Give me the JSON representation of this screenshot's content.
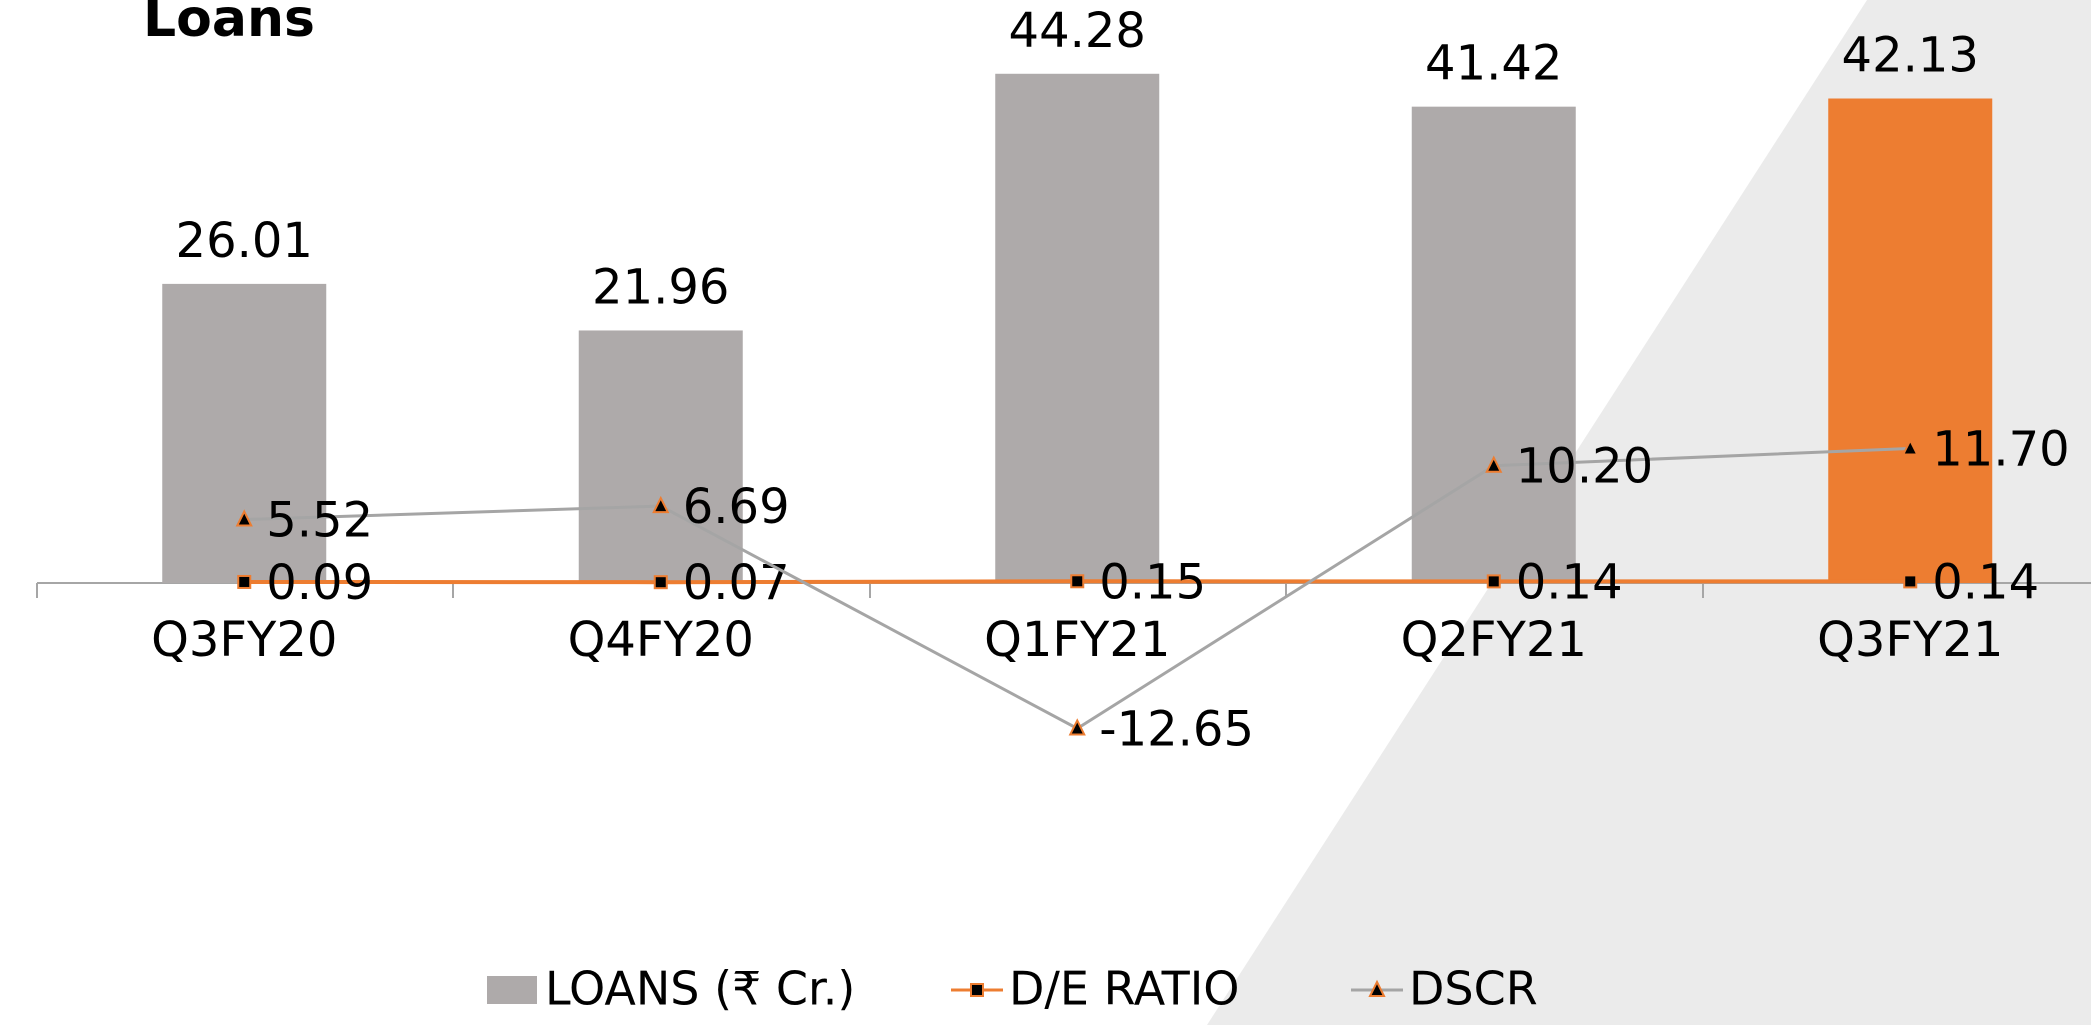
{
  "chart_data": {
    "type": "combo",
    "title": "Loans",
    "categories": [
      "Q3FY20",
      "Q4FY20",
      "Q1FY21",
      "Q2FY21",
      "Q3FY21"
    ],
    "series": [
      {
        "name": "LOANS (₹ Cr.)",
        "type": "bar",
        "color": "#aeaaaa",
        "colors": [
          "#aeaaaa",
          "#aeaaaa",
          "#aeaaaa",
          "#aeaaaa",
          "#ed7d31"
        ],
        "values": [
          26.01,
          21.96,
          44.28,
          41.42,
          42.13
        ]
      },
      {
        "name": "D/E RATIO",
        "type": "line",
        "color": "#ed7d31",
        "marker": "square",
        "values": [
          0.09,
          0.07,
          0.15,
          0.14,
          0.14
        ]
      },
      {
        "name": "DSCR",
        "type": "line",
        "color": "#a5a5a5",
        "marker": "triangle",
        "values": [
          5.52,
          6.69,
          -12.65,
          10.2,
          11.7
        ],
        "value_labels": [
          "5.52",
          "6.69",
          "-12.65",
          "10.20",
          "11.70"
        ]
      }
    ],
    "ylim": [
      -20,
      50
    ],
    "legend": "bottom"
  }
}
